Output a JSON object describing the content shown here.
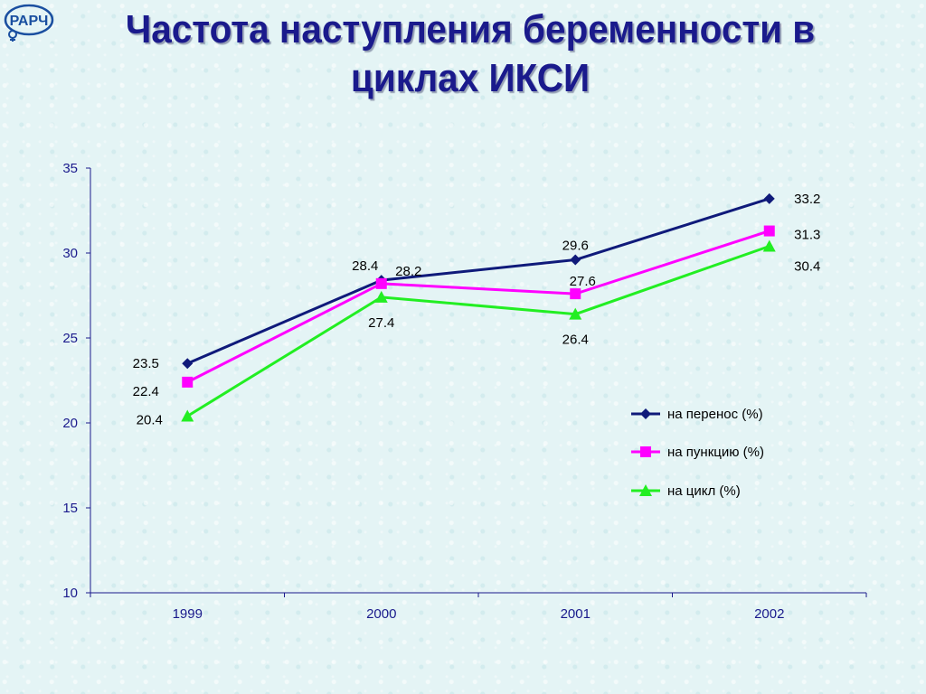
{
  "title_line1": "Частота наступления беременности в",
  "title_line2": "циклах ИКСИ",
  "logo_text": "РАРЧ",
  "chart_data": {
    "type": "line",
    "categories": [
      "1999",
      "2000",
      "2001",
      "2002"
    ],
    "series": [
      {
        "name": "на перенос (%)",
        "values": [
          23.5,
          28.4,
          29.6,
          33.2
        ],
        "color": "#0f1a7a",
        "marker": "diamond",
        "labels": [
          "23.5",
          "28.4",
          "29.6",
          "33.2"
        ]
      },
      {
        "name": "на пункцию (%)",
        "values": [
          22.4,
          28.2,
          27.6,
          31.3
        ],
        "color": "#ff00ff",
        "marker": "square",
        "labels": [
          "22.4",
          "28.2",
          "27.6",
          "31.3"
        ]
      },
      {
        "name": "на цикл (%)",
        "values": [
          20.4,
          27.4,
          26.4,
          30.4
        ],
        "color": "#22ee22",
        "marker": "triangle",
        "labels": [
          "20.4",
          "27.4",
          "26.4",
          "30.4"
        ]
      }
    ],
    "y_ticks": [
      "10",
      "15",
      "20",
      "25",
      "30",
      "35"
    ],
    "ylim": [
      10,
      35
    ],
    "grid": false,
    "legend_position": "right"
  }
}
